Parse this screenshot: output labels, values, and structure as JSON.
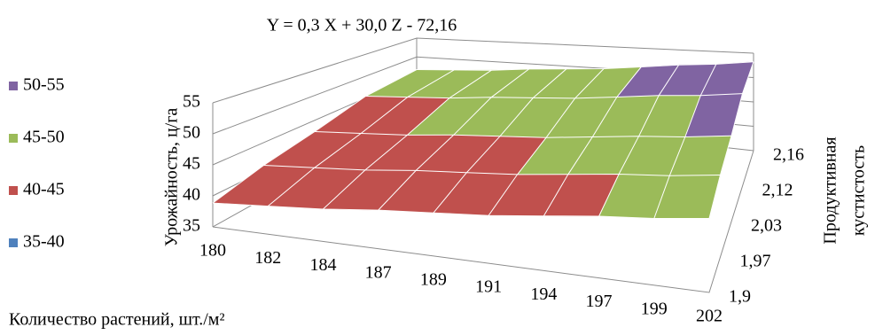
{
  "chart_data": {
    "type": "surface",
    "title": "Y = 0,3 X + 30,0 Z - 72,16",
    "x_label": "Количество растений,  шт./м²",
    "y_label": "Урожайность,  ц/га",
    "z_label": [
      "Продуктивная",
      "кустистость"
    ],
    "categories": [
      "180",
      "182",
      "184",
      "187",
      "189",
      "191",
      "194",
      "197",
      "199",
      "202"
    ],
    "series": [
      {
        "name": "1,9",
        "values": [
          38.84,
          39.44,
          40.04,
          40.94,
          41.54,
          42.14,
          43.04,
          43.94,
          44.54,
          45.44
        ]
      },
      {
        "name": "1,97",
        "values": [
          40.94,
          41.54,
          42.14,
          43.04,
          43.64,
          44.24,
          45.14,
          46.04,
          46.64,
          47.54
        ]
      },
      {
        "name": "2,03",
        "values": [
          42.74,
          43.34,
          43.94,
          44.84,
          45.44,
          46.04,
          46.94,
          47.84,
          48.44,
          49.34
        ]
      },
      {
        "name": "2,12",
        "values": [
          45.44,
          46.04,
          46.64,
          47.54,
          48.14,
          48.74,
          49.64,
          50.54,
          51.14,
          52.04
        ]
      },
      {
        "name": "2,16",
        "values": [
          46.64,
          47.24,
          47.84,
          48.74,
          49.34,
          49.94,
          50.84,
          51.74,
          52.34,
          53.24
        ]
      }
    ],
    "bands": [
      {
        "name": "50-55",
        "color": "#8064a2",
        "range": [
          50,
          55
        ]
      },
      {
        "name": "45-50",
        "color": "#9bbb59",
        "range": [
          45,
          50
        ]
      },
      {
        "name": "40-45",
        "color": "#c0504d",
        "range": [
          40,
          45
        ]
      },
      {
        "name": "35-40",
        "color": "#4f81bd",
        "range": [
          35,
          40
        ]
      }
    ],
    "ylim": [
      35,
      55
    ],
    "yticks": [
      35,
      40,
      45,
      50,
      55
    ],
    "grid": true
  }
}
